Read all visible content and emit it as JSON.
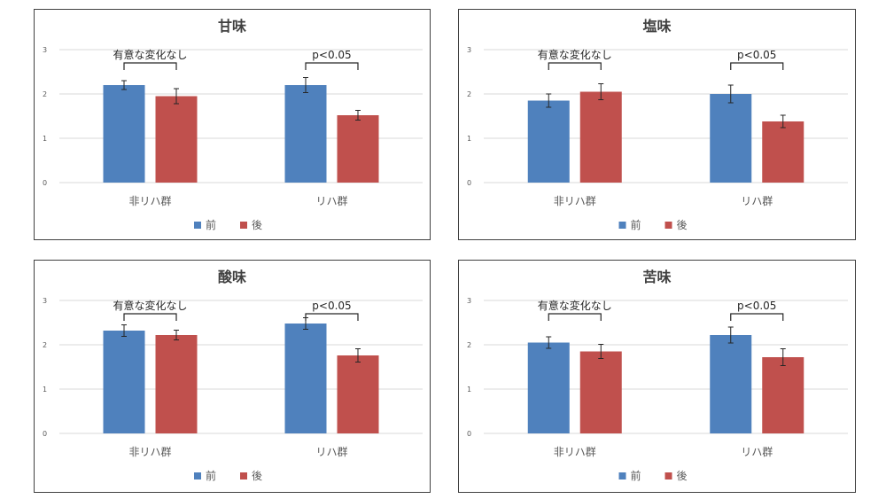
{
  "series_legend": [
    "前",
    "後"
  ],
  "colors": {
    "before": "#4f81bd",
    "after": "#c0504d"
  },
  "chart_data": [
    {
      "type": "bar",
      "title": "甘味",
      "categories": [
        "非リハ群",
        "リハ群"
      ],
      "ylim": [
        0,
        3
      ],
      "yticks": [
        0,
        1,
        2,
        3
      ],
      "series": [
        {
          "name": "前",
          "values": [
            2.2,
            2.2
          ],
          "errors": [
            0.1,
            0.17
          ]
        },
        {
          "name": "後",
          "values": [
            1.95,
            1.52
          ],
          "errors": [
            0.17,
            0.11
          ]
        }
      ],
      "annotations": [
        "有意な変化なし",
        "p<0.05"
      ],
      "legend": "bottom",
      "grid": true
    },
    {
      "type": "bar",
      "title": "塩味",
      "categories": [
        "非リハ群",
        "リハ群"
      ],
      "ylim": [
        0,
        3
      ],
      "yticks": [
        0,
        1,
        2,
        3
      ],
      "series": [
        {
          "name": "前",
          "values": [
            1.85,
            2.0
          ],
          "errors": [
            0.15,
            0.2
          ]
        },
        {
          "name": "後",
          "values": [
            2.05,
            1.38
          ],
          "errors": [
            0.18,
            0.14
          ]
        }
      ],
      "annotations": [
        "有意な変化なし",
        "p<0.05"
      ],
      "legend": "bottom",
      "grid": true
    },
    {
      "type": "bar",
      "title": "酸味",
      "categories": [
        "非リハ群",
        "リハ群"
      ],
      "ylim": [
        0,
        3
      ],
      "yticks": [
        0,
        1,
        2,
        3
      ],
      "series": [
        {
          "name": "前",
          "values": [
            2.32,
            2.48
          ],
          "errors": [
            0.13,
            0.13
          ]
        },
        {
          "name": "後",
          "values": [
            2.22,
            1.76
          ],
          "errors": [
            0.11,
            0.15
          ]
        }
      ],
      "annotations": [
        "有意な変化なし",
        "p<0.05"
      ],
      "legend": "bottom",
      "grid": true
    },
    {
      "type": "bar",
      "title": "苦味",
      "categories": [
        "非リハ群",
        "リハ群"
      ],
      "ylim": [
        0,
        3
      ],
      "yticks": [
        0,
        1,
        2,
        3
      ],
      "series": [
        {
          "name": "前",
          "values": [
            2.05,
            2.22
          ],
          "errors": [
            0.13,
            0.18
          ]
        },
        {
          "name": "後",
          "values": [
            1.85,
            1.72
          ],
          "errors": [
            0.16,
            0.19
          ]
        }
      ],
      "annotations": [
        "有意な変化なし",
        "p<0.05"
      ],
      "legend": "bottom",
      "grid": true
    }
  ]
}
